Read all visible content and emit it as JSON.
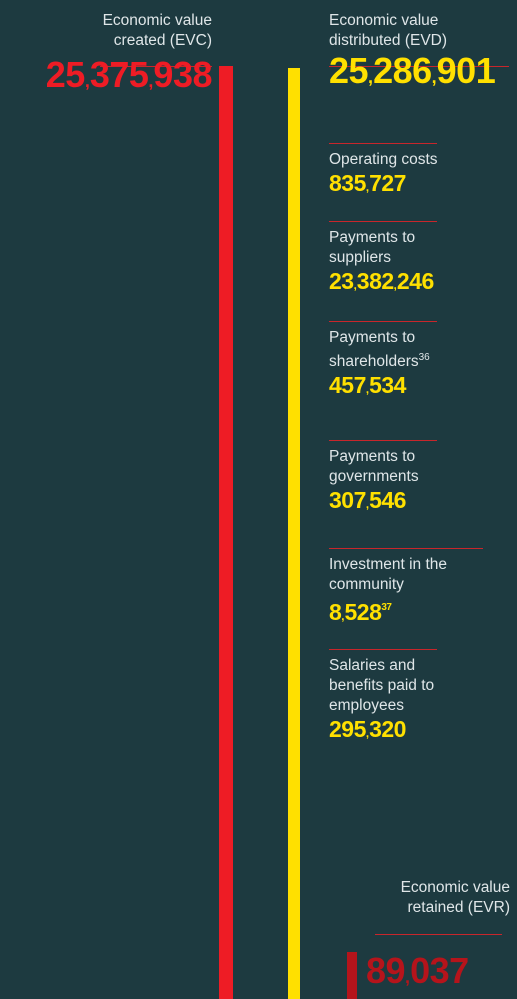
{
  "evc": {
    "label": "Economic value created (EVC)",
    "value": "25,375,938"
  },
  "evd": {
    "label": "Economic value distributed (EVD)",
    "value": "25,286,901"
  },
  "items": [
    {
      "label": "Operating costs",
      "value": "835,727"
    },
    {
      "label": "Payments to suppliers",
      "value": "23,382,246"
    },
    {
      "label": "Payments to shareholders",
      "note": "36",
      "value": "457,534"
    },
    {
      "label": "Payments to governments",
      "value": "307,546"
    },
    {
      "label": "Investment in the community",
      "value": "8,528",
      "note": "37"
    },
    {
      "label": "Salaries and benefits paid to employees",
      "value": "295,320"
    }
  ],
  "evr": {
    "label": "Economic value retained (EVR)",
    "value": "89,037"
  }
}
